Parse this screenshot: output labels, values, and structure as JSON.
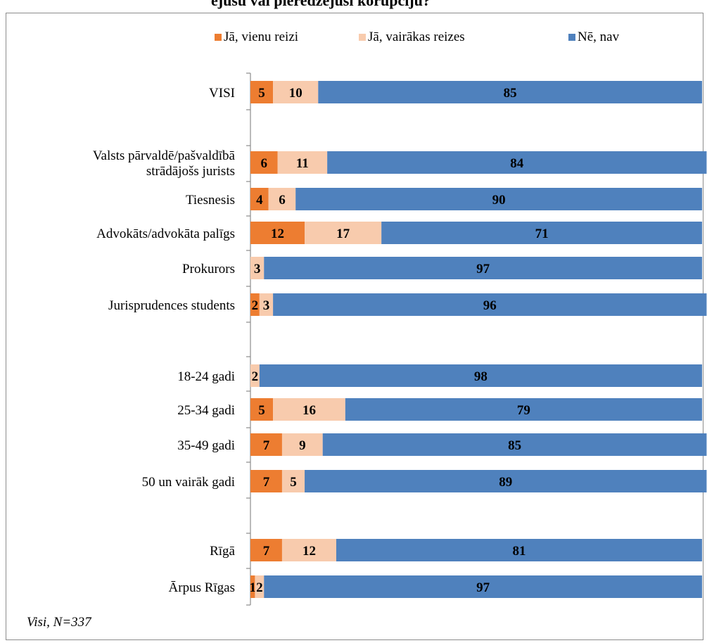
{
  "chart_data": {
    "type": "bar",
    "orientation": "horizontal",
    "stacked": true,
    "title": "",
    "categories": [
      "VISI",
      "Valsts pārvaldē/pašvaldībā strādājošs jurists",
      "Tiesnesis",
      "Advokāts/advokāta palīgs",
      "Prokurors",
      "Jurisprudences students",
      "18-24 gadi",
      "25-34 gadi",
      "35-49 gadi",
      "50 un vairāk gadi",
      "Rīgā",
      "Ārpus Rīgas"
    ],
    "category_lines": [
      [
        "VISI"
      ],
      [
        "Valsts pārvaldē/pašvaldībā",
        "strādājošs jurists"
      ],
      [
        "Tiesnesis"
      ],
      [
        "Advokāts/advokāta palīgs"
      ],
      [
        "Prokurors"
      ],
      [
        "Jurisprudences students"
      ],
      [
        "18-24 gadi"
      ],
      [
        "25-34 gadi"
      ],
      [
        "35-49 gadi"
      ],
      [
        "50 un vairāk gadi"
      ],
      [
        "Rīgā"
      ],
      [
        "Ārpus Rīgas"
      ]
    ],
    "series": [
      {
        "name": "Jā, vienu reizi",
        "color": "#ed7d31",
        "values": [
          5,
          6,
          4,
          12,
          0,
          2,
          0,
          5,
          7,
          7,
          7,
          1
        ]
      },
      {
        "name": "Jā, vairākas reizes",
        "color": "#f8cbad",
        "values": [
          10,
          11,
          6,
          17,
          3,
          3,
          2,
          16,
          9,
          5,
          12,
          2
        ]
      },
      {
        "name": "Nē, nav",
        "color": "#4f81bd",
        "values": [
          85,
          84,
          90,
          71,
          97,
          96,
          98,
          79,
          85,
          89,
          81,
          97
        ]
      }
    ],
    "xlim": [
      0,
      100
    ],
    "grid": false,
    "legend_position": "top",
    "data_labels": true
  },
  "header": {
    "title_fragment": "ējušu vai pieredzējuši korupciju?"
  },
  "footnote": "Visi, N=337"
}
